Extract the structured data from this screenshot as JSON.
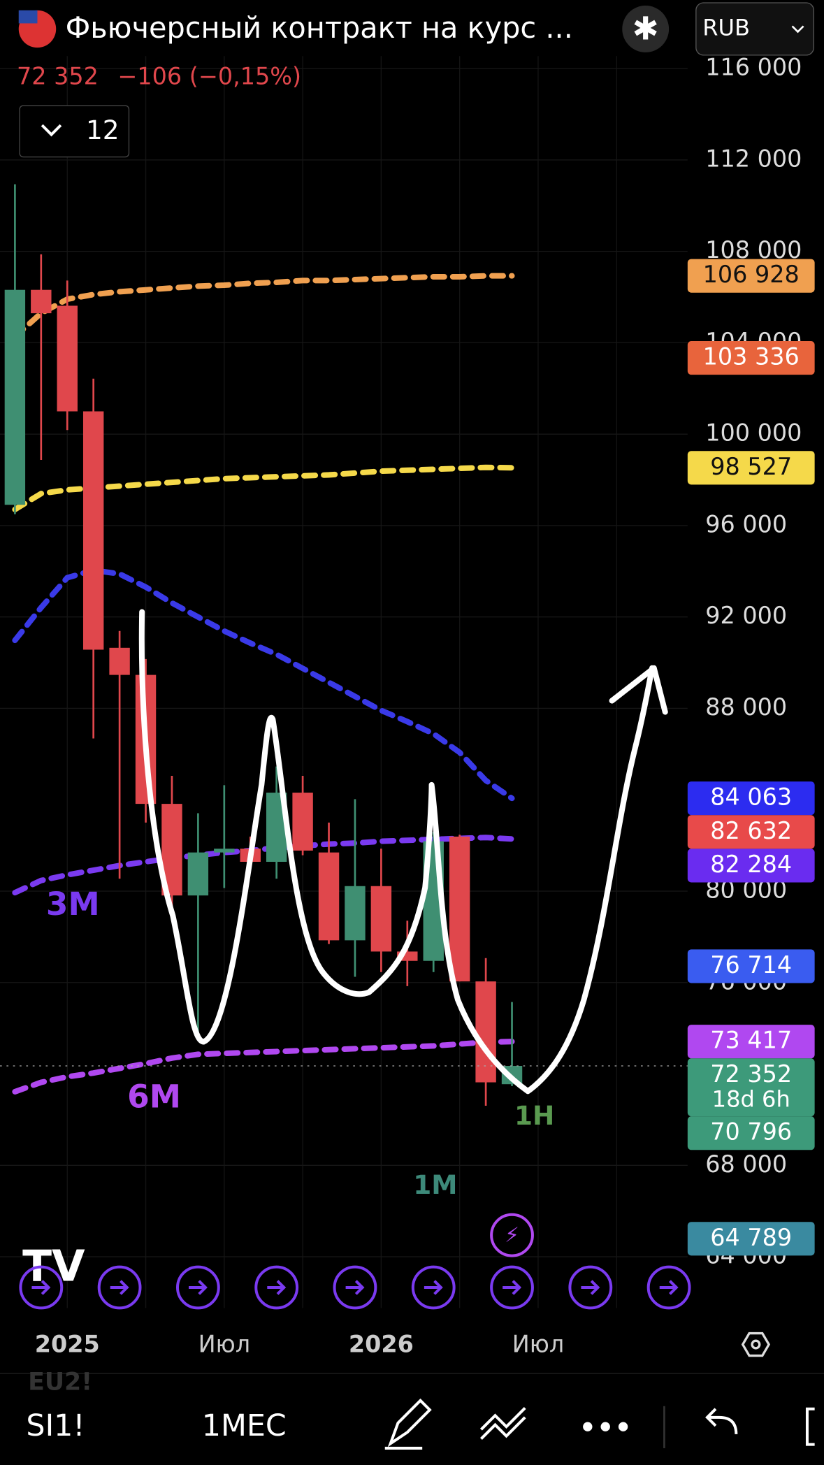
{
  "header": {
    "title": "Фьючерсный контракт на курс ...",
    "price": "72 352",
    "change": "−106 (−0,15%)",
    "interval_count": "12",
    "currency": "RUB"
  },
  "chart_data": {
    "type": "candlestick",
    "categories": [
      null,
      null,
      "2025",
      null,
      null,
      null,
      null,
      null,
      "Июл",
      null,
      null,
      null,
      null,
      null,
      "2026",
      null,
      null,
      null,
      null,
      null,
      "Июл"
    ],
    "open": [
      96908,
      106315,
      105620,
      100998,
      90650,
      89464,
      83820,
      79811,
      81693,
      81857,
      81284,
      84311,
      81693,
      77848,
      80221,
      77357,
      76949,
      82388,
      76049,
      71551,
      null
    ],
    "high": [
      110937,
      107869,
      106724,
      102429,
      91386,
      90159,
      85047,
      83411,
      84638,
      82388,
      85456,
      85047,
      83002,
      84025,
      81857,
      78707,
      82593,
      82470,
      77072,
      75149,
      null
    ],
    "low": [
      96500,
      98871,
      100180,
      86683,
      80548,
      83000,
      78707,
      73595,
      80139,
      81000,
      80548,
      81570,
      77685,
      76253,
      76458,
      75844,
      76458,
      76049,
      70610,
      71470,
      null
    ],
    "close": [
      106315,
      105292,
      100998,
      90568,
      89464,
      83820,
      79811,
      81693,
      81857,
      81284,
      84311,
      81775,
      77848,
      80221,
      77357,
      76949,
      82184,
      76049,
      71633,
      72352,
      null
    ],
    "up_color": "#3f8f72",
    "down_color": "#e0474c",
    "ylim": [
      63800,
      119000
    ],
    "yticks": [
      {
        "value": 64000,
        "label": "64 000"
      },
      {
        "value": 68000,
        "label": "68 000"
      },
      {
        "value": 76000,
        "label": "76 000"
      },
      {
        "value": 80000,
        "label": "80 000"
      },
      {
        "value": 88000,
        "label": "88 000"
      },
      {
        "value": 92000,
        "label": "92 000"
      },
      {
        "value": 96000,
        "label": "96 000"
      },
      {
        "value": 100000,
        "label": "100 000"
      },
      {
        "value": 104000,
        "label": "104 000"
      },
      {
        "value": 108000,
        "label": "108 000"
      },
      {
        "value": 112000,
        "label": "112 000"
      },
      {
        "value": 116000,
        "label": "116 000"
      }
    ],
    "grid": true,
    "series": [
      {
        "color": "#f0a050",
        "values": [
          104270,
          105292,
          105906,
          106110,
          106233,
          106315,
          106397,
          106479,
          106519,
          106601,
          106642,
          106724,
          106724,
          106765,
          106806,
          106847,
          106888,
          106888,
          106928,
          106928,
          null
        ]
      },
      {
        "color": "#f5d94a",
        "values": [
          96703,
          97399,
          97562,
          97644,
          97726,
          97808,
          97890,
          97971,
          98053,
          98094,
          98135,
          98176,
          98217,
          98298,
          98380,
          98421,
          98462,
          98503,
          98544,
          98527,
          null
        ]
      },
      {
        "color": "#3a3ae8",
        "values": [
          90977,
          92409,
          93718,
          94045,
          93882,
          93309,
          92614,
          92000,
          91386,
          90855,
          90364,
          89750,
          89137,
          88523,
          87910,
          87419,
          86888,
          86070,
          84843,
          84063,
          null
        ]
      },
      {
        "name": "3M",
        "color": "#7a3af0",
        "values": [
          79934,
          80466,
          80712,
          80916,
          81121,
          81284,
          81448,
          81570,
          81693,
          81775,
          81898,
          81980,
          82061,
          82102,
          82184,
          82225,
          82266,
          82307,
          82348,
          82284,
          null
        ]
      },
      {
        "name": "6M",
        "color": "#b048f0",
        "values": [
          71223,
          71632,
          71877,
          72041,
          72245,
          72450,
          72695,
          72859,
          72900,
          72940,
          72981,
          73022,
          73063,
          73104,
          73145,
          73186,
          73227,
          73309,
          73390,
          73417,
          null
        ]
      }
    ],
    "annotations": [
      {
        "text": "1M",
        "color": "#3d8a7a"
      },
      {
        "text": "1H",
        "color": "#5a9a50"
      }
    ],
    "price_labels": [
      {
        "value": 106928,
        "label": "106 928",
        "color": "#f0a050",
        "text_color": "#111"
      },
      {
        "value": 103336,
        "label": "103 336",
        "color": "#e8643c",
        "text_color": "#fff"
      },
      {
        "value": 98527,
        "label": "98 527",
        "color": "#f5d94a",
        "text_color": "#111"
      },
      {
        "value": 84063,
        "label": "84 063",
        "color": "#2c2cf0",
        "text_color": "#fff"
      },
      {
        "value": 82632,
        "label": "82 632",
        "color": "#e84a4a",
        "text_color": "#fff"
      },
      {
        "value": 82284,
        "label": "82 284",
        "color": "#6a2cf0",
        "text_color": "#fff"
      },
      {
        "value": 76714,
        "label": "76 714",
        "color": "#3a5cf0",
        "text_color": "#fff"
      },
      {
        "value": 73417,
        "label": "73 417",
        "color": "#b048f0",
        "text_color": "#fff"
      },
      {
        "value": 72352,
        "label": "72 352",
        "countdown": "18d 6h",
        "color": "#3d9a7a",
        "text_color": "#fff"
      },
      {
        "value": 70796,
        "label": "70 796",
        "color": "#3d9a7a",
        "text_color": "#fff"
      },
      {
        "value": 64789,
        "label": "64 789",
        "color": "#3a8aa0",
        "text_color": "#fff"
      }
    ]
  },
  "toolbar": {
    "symbol": "SI1!",
    "interval": "1МЕС",
    "background_symbol": "EU2!"
  }
}
